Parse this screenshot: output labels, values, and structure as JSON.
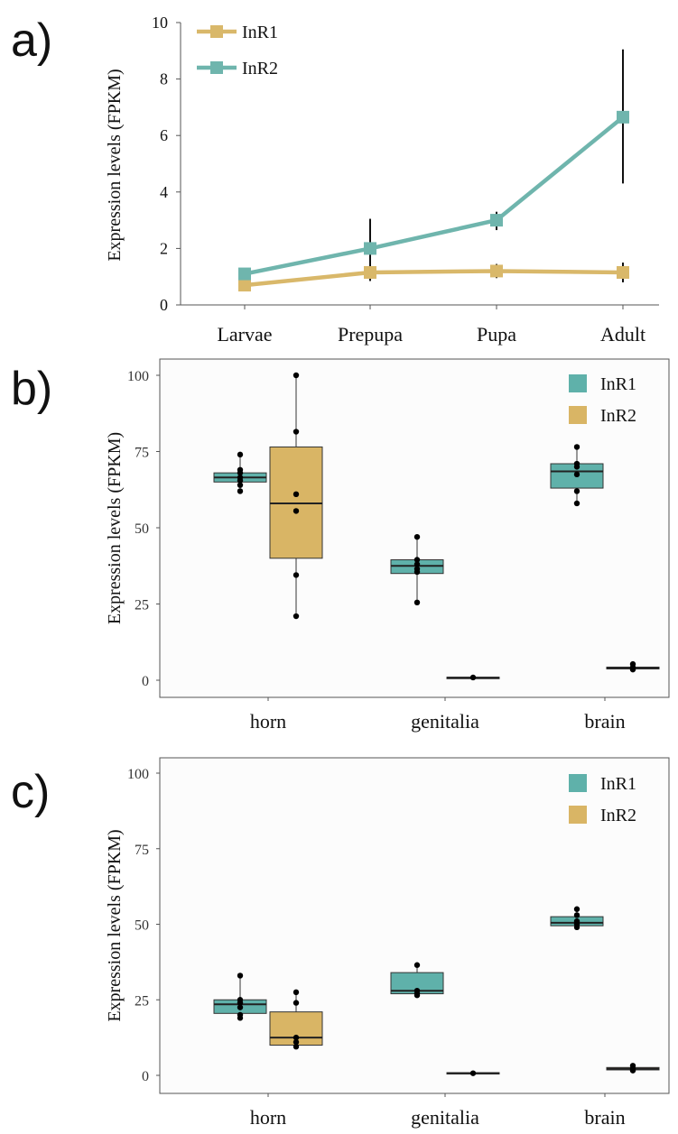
{
  "chart_data": [
    {
      "panel": "a)",
      "type": "line",
      "categories": [
        "Larvae",
        "Prepupa",
        "Pupa",
        "Adult"
      ],
      "ylabel": "Expression levels (FPKM)",
      "xlabel": "",
      "ylim": [
        0,
        10
      ],
      "yticks": [
        "0",
        "2",
        "4",
        "6",
        "8",
        "10"
      ],
      "grid": false,
      "legend_position": "top-left",
      "series": [
        {
          "name": "InR1",
          "color": "#d9b86a",
          "values": [
            0.7,
            1.15,
            1.2,
            1.15
          ],
          "err_low": [
            0.6,
            0.85,
            0.95,
            0.8
          ],
          "err_high": [
            0.8,
            1.45,
            1.45,
            1.5
          ]
        },
        {
          "name": "InR2",
          "color": "#6fb5ad",
          "values": [
            1.1,
            2.0,
            3.0,
            6.65
          ],
          "err_low": [
            0.9,
            0.85,
            2.65,
            4.3
          ],
          "err_high": [
            1.3,
            3.05,
            3.3,
            9.05
          ]
        }
      ]
    },
    {
      "panel": "b)",
      "type": "box",
      "categories": [
        "horn",
        "genitalia",
        "brain"
      ],
      "ylabel": "Expression levels (FPKM)",
      "xlabel": "",
      "ylim": [
        0,
        100
      ],
      "yticks": [
        "0",
        "25",
        "50",
        "75",
        "100"
      ],
      "legend_position": "top-right",
      "series": [
        {
          "name": "InR1",
          "color": "#5fb1aa",
          "boxes": [
            {
              "category": "horn",
              "min": 62,
              "q1": 65,
              "median": 66.5,
              "q3": 68,
              "max": 74,
              "points": [
                74,
                69,
                68,
                66.5,
                65.5,
                64,
                62
              ]
            },
            {
              "category": "genitalia",
              "min": 25.5,
              "q1": 35,
              "median": 37.5,
              "q3": 39.5,
              "max": 47,
              "points": [
                47,
                39.5,
                38,
                36.5,
                35.5,
                25.5
              ]
            },
            {
              "category": "brain",
              "min": 58,
              "q1": 63,
              "median": 68.5,
              "q3": 71,
              "max": 76.5,
              "points": [
                76.5,
                71,
                70,
                67.5,
                62,
                58
              ]
            }
          ]
        },
        {
          "name": "InR2",
          "color": "#d9b565",
          "boxes": [
            {
              "category": "horn",
              "min": 21,
              "q1": 40,
              "median": 58,
              "q3": 76.5,
              "max": 100,
              "points": [
                100,
                81.5,
                61,
                55.5,
                34.5,
                21
              ]
            },
            {
              "category": "genitalia",
              "min": 0.5,
              "q1": 0.5,
              "median": 0.8,
              "q3": 1,
              "max": 1.2,
              "points": [
                0.9
              ]
            },
            {
              "category": "brain",
              "min": 3,
              "q1": 3.7,
              "median": 4,
              "q3": 4.3,
              "max": 5.5,
              "points": [
                5.3,
                4.2,
                3.5
              ]
            }
          ]
        }
      ]
    },
    {
      "panel": "c)",
      "type": "box",
      "categories": [
        "horn",
        "genitalia",
        "brain"
      ],
      "ylabel": "Expression levels (FPKM)",
      "xlabel": "",
      "ylim": [
        0,
        100
      ],
      "yticks": [
        "0",
        "25",
        "50",
        "75",
        "100"
      ],
      "legend_position": "top-right",
      "series": [
        {
          "name": "InR1",
          "color": "#5fb1aa",
          "boxes": [
            {
              "category": "horn",
              "min": 19,
              "q1": 20.5,
              "median": 23.5,
              "q3": 25,
              "max": 33,
              "points": [
                33,
                25,
                24,
                22.5,
                20,
                19
              ]
            },
            {
              "category": "genitalia",
              "min": 26.5,
              "q1": 27,
              "median": 28,
              "q3": 34,
              "max": 36.5,
              "points": [
                36.5,
                28,
                27,
                26.5
              ]
            },
            {
              "category": "brain",
              "min": 49,
              "q1": 49.5,
              "median": 50.5,
              "q3": 52.5,
              "max": 55,
              "points": [
                55,
                53,
                51,
                50,
                49
              ]
            }
          ]
        },
        {
          "name": "InR2",
          "color": "#d9b565",
          "boxes": [
            {
              "category": "horn",
              "min": 9.5,
              "q1": 10,
              "median": 12.5,
              "q3": 21,
              "max": 27.5,
              "points": [
                27.5,
                24,
                12.5,
                11,
                9.5
              ]
            },
            {
              "category": "genitalia",
              "min": 0.3,
              "q1": 0.5,
              "median": 0.7,
              "q3": 0.9,
              "max": 1,
              "points": [
                0.7
              ]
            },
            {
              "category": "brain",
              "min": 1.5,
              "q1": 1.8,
              "median": 2.2,
              "q3": 2.6,
              "max": 3.5,
              "points": [
                3.2,
                2.2,
                1.6
              ]
            }
          ]
        }
      ]
    }
  ]
}
